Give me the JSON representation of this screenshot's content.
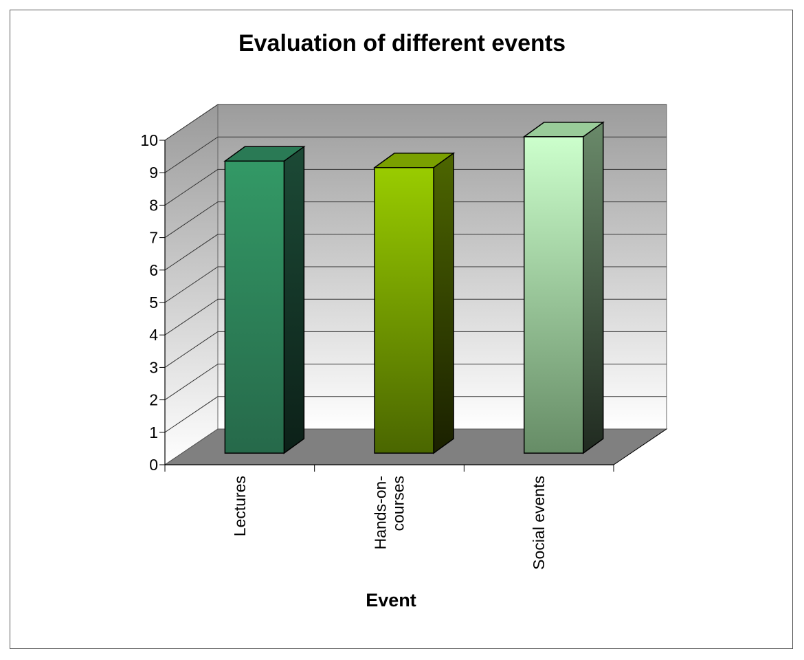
{
  "chart_data": {
    "type": "bar",
    "title": "Evaluation of different events",
    "xlabel": "Event",
    "ylabel": "",
    "categories": [
      "Lectures",
      "Hands-on-courses",
      "Social events"
    ],
    "category_label_lines": [
      [
        "Lectures"
      ],
      [
        "Hands-on-",
        "courses"
      ],
      [
        "Social events"
      ]
    ],
    "values": [
      9.0,
      8.8,
      9.75
    ],
    "ylim": [
      0,
      10
    ],
    "yticks": [
      "0",
      "1",
      "2",
      "3",
      "4",
      "5",
      "6",
      "7",
      "8",
      "9",
      "10"
    ],
    "grid": true,
    "legend": "none",
    "colors": {
      "bars": [
        {
          "front_top": "#339966",
          "front_bottom": "#26694a",
          "side_top": "#1c4a36",
          "side_bottom": "#0c2018",
          "top": "#2a7a55"
        },
        {
          "front_top": "#99cc00",
          "front_bottom": "#4a6600",
          "side_top": "#4d6600",
          "side_bottom": "#1a2000",
          "top": "#7aa000"
        },
        {
          "front_top": "#ccffcc",
          "front_bottom": "#668c66",
          "side_top": "#6a8a6a",
          "side_bottom": "#202a20",
          "top": "#99cc99"
        }
      ],
      "back_wall_top": "#9c9c9c",
      "back_wall_bottom": "#ffffff",
      "floor": "#808080"
    }
  }
}
